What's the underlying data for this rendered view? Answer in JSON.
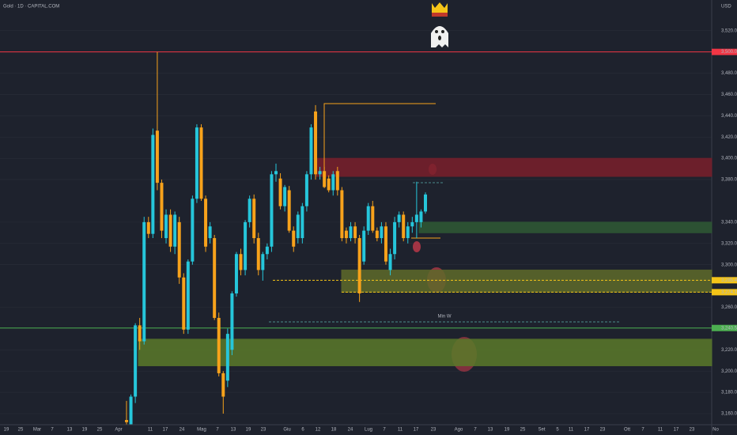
{
  "chart_data": {
    "type": "candlestick",
    "title": "Gold · 1D · CAPITAL.COM",
    "currency": "USD",
    "up_color": "#26c6da",
    "down_color": "#f7a21b",
    "open": [
      3154,
      3150,
      3176,
      3243,
      3228,
      3340,
      3329,
      3426,
      3377,
      3325,
      3347,
      3317,
      3340,
      3288,
      3239,
      3303,
      3362,
      3429,
      3362,
      3325,
      3325,
      3250,
      3198,
      3191,
      3220,
      3273,
      3310,
      3295,
      3340,
      3362,
      3325,
      3295,
      3310,
      3317,
      3385,
      3381,
      3355,
      3370,
      3332,
      3325,
      3325,
      3355,
      3385,
      3444,
      3385,
      3388,
      3381,
      3370,
      3388,
      3370,
      3332,
      3325,
      3336,
      3325,
      3303,
      3332,
      3355,
      3332,
      3325,
      3336,
      3295,
      3310,
      3340,
      3347,
      3325,
      3336,
      3340,
      3340,
      3350
    ],
    "high": [
      3172,
      3178,
      3245,
      3250,
      3345,
      3345,
      3428,
      3500,
      3380,
      3352,
      3352,
      3350,
      3345,
      3292,
      3305,
      3365,
      3432,
      3432,
      3365,
      3340,
      3328,
      3255,
      3200,
      3240,
      3275,
      3312,
      3315,
      3342,
      3365,
      3366,
      3330,
      3312,
      3320,
      3388,
      3395,
      3386,
      3375,
      3374,
      3336,
      3350,
      3358,
      3388,
      3432,
      3450,
      3392,
      3392,
      3384,
      3388,
      3392,
      3373,
      3335,
      3340,
      3340,
      3328,
      3336,
      3358,
      3360,
      3335,
      3340,
      3340,
      3315,
      3345,
      3350,
      3350,
      3340,
      3345,
      3378,
      3352,
      3368
    ],
    "low": [
      3150,
      3150,
      3170,
      3220,
      3225,
      3325,
      3325,
      3370,
      3325,
      3320,
      3312,
      3310,
      3282,
      3235,
      3235,
      3300,
      3358,
      3360,
      3312,
      3320,
      3248,
      3195,
      3160,
      3185,
      3215,
      3270,
      3290,
      3290,
      3335,
      3320,
      3290,
      3285,
      3305,
      3312,
      3378,
      3352,
      3350,
      3330,
      3312,
      3320,
      3320,
      3350,
      3380,
      3380,
      3380,
      3372,
      3368,
      3365,
      3365,
      3322,
      3320,
      3322,
      3320,
      3265,
      3300,
      3328,
      3330,
      3322,
      3320,
      3300,
      3290,
      3305,
      3335,
      3322,
      3320,
      3330,
      3325,
      3335,
      3348
    ],
    "close": [
      3152,
      3176,
      3243,
      3228,
      3340,
      3329,
      3422,
      3377,
      3332,
      3347,
      3317,
      3347,
      3288,
      3239,
      3303,
      3362,
      3429,
      3362,
      3317,
      3336,
      3250,
      3198,
      3176,
      3235,
      3273,
      3310,
      3295,
      3340,
      3362,
      3325,
      3295,
      3310,
      3317,
      3385,
      3388,
      3355,
      3373,
      3332,
      3317,
      3347,
      3355,
      3385,
      3429,
      3385,
      3388,
      3373,
      3370,
      3385,
      3370,
      3325,
      3325,
      3336,
      3325,
      3273,
      3332,
      3355,
      3332,
      3325,
      3336,
      3303,
      3310,
      3340,
      3347,
      3325,
      3336,
      3340,
      3347,
      3350,
      3366
    ],
    "ylim": [
      3149.6,
      3548.8
    ],
    "yticks": [
      {
        "value": 3160,
        "label": "3,160.00"
      },
      {
        "value": 3180,
        "label": "3,180.00"
      },
      {
        "value": 3200,
        "label": "3,200.00"
      },
      {
        "value": 3220,
        "label": "3,220.00"
      },
      {
        "value": 3260,
        "label": "3,260.00"
      },
      {
        "value": 3300,
        "label": "3,300.00"
      },
      {
        "value": 3320,
        "label": "3,320.00"
      },
      {
        "value": 3340,
        "label": "3,340.00"
      },
      {
        "value": 3380,
        "label": "3,380.00"
      },
      {
        "value": 3400,
        "label": "3,400.00"
      },
      {
        "value": 3420,
        "label": "3,420.00"
      },
      {
        "value": 3440,
        "label": "3,440.00"
      },
      {
        "value": 3460,
        "label": "3,460.00"
      },
      {
        "value": 3480,
        "label": "3,480.00"
      },
      {
        "value": 3520,
        "label": "3,520.00"
      }
    ],
    "x_labels": [
      "19",
      "25",
      "Mar",
      "7",
      "13",
      "19",
      "25",
      "Apr",
      "11",
      "17",
      "24",
      "Mag",
      "7",
      "13",
      "19",
      "23",
      "Giu",
      "6",
      "12",
      "18",
      "24",
      "Lug",
      "7",
      "11",
      "17",
      "23",
      "Ago",
      "7",
      "13",
      "19",
      "25",
      "Set",
      "5",
      "11",
      "17",
      "23",
      "Ott",
      "7",
      "11",
      "17",
      "23",
      "No"
    ],
    "price_lines": [
      {
        "value": 3500,
        "label": "3,500.00",
        "color": "#f23645"
      },
      {
        "value": 3240.5,
        "label": "3,240.50",
        "color": "#4caf50"
      },
      {
        "value": 3285.4,
        "label": "3,285.40",
        "color": "#f5c518"
      },
      {
        "value": 3274.18,
        "label": "3,274.18",
        "color": "#f5c518"
      }
    ],
    "zones": [
      {
        "low": 3383,
        "high": 3400,
        "color": "#7a1f2b"
      },
      {
        "low": 3330,
        "high": 3340,
        "color": "#2f5a35"
      },
      {
        "low": 3274.18,
        "high": 3295,
        "color": "#5e6a2a"
      },
      {
        "low": 3205,
        "high": 3230,
        "color": "#5a7a2a"
      }
    ],
    "annotation": "Min W"
  }
}
